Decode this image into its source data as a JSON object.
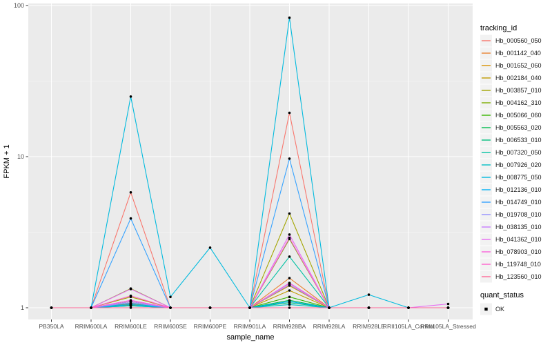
{
  "figure": {
    "background": "#FFFFFF",
    "panel_background": "#EBEBEB",
    "grid_major_color": "#FFFFFF",
    "grid_minor_color": "#FFFFFF",
    "axis_text_color": "#4D4D4D",
    "axis_title_color": "#000000",
    "tick_color": "#333333",
    "point_color": "#000000",
    "legend_key_background": "#F2F2F2"
  },
  "chart_data": {
    "type": "line",
    "title": "",
    "xlabel": "sample_name",
    "ylabel": "FPKM + 1",
    "y_scale": "log10",
    "ylim": [
      0.83,
      101
    ],
    "y_ticks": [
      1,
      10,
      100
    ],
    "y_tick_labels": [
      "1",
      "10",
      "100"
    ],
    "y_minor_ticks": [
      3.162,
      31.62
    ],
    "grid": true,
    "legend_position": "right",
    "categories": [
      "PB350LA",
      "RRIM600LA",
      "RRIM600LE",
      "RRIM600SE",
      "RRIM600PE",
      "RRIM901LA",
      "RRIM928BA",
      "RRIM928LA",
      "RRIM928LE",
      "RRII105LA_Control",
      "RRII105LA_Stressed"
    ],
    "legend_title": "tracking_id",
    "series": [
      {
        "name": "Hb_000560_050",
        "color": "#F8766D",
        "values": [
          1,
          1,
          5.8,
          1,
          1,
          1,
          19.5,
          1,
          1,
          1,
          1
        ]
      },
      {
        "name": "Hb_001142_040",
        "color": "#EA8331",
        "values": [
          1,
          1,
          1.06,
          1,
          1,
          1,
          1.57,
          1,
          1,
          1,
          1
        ]
      },
      {
        "name": "Hb_001652_060",
        "color": "#D89000",
        "values": [
          1,
          1,
          1.04,
          1,
          1,
          1,
          1.4,
          1,
          1,
          1,
          1
        ]
      },
      {
        "name": "Hb_002184_040",
        "color": "#C09B00",
        "values": [
          1,
          1,
          1.1,
          1,
          1,
          1,
          1.3,
          1,
          1,
          1,
          1
        ]
      },
      {
        "name": "Hb_003857_010",
        "color": "#A3A500",
        "values": [
          1,
          1,
          1.18,
          1,
          1,
          1,
          4.2,
          1,
          1,
          1,
          1
        ]
      },
      {
        "name": "Hb_004162_310",
        "color": "#7CAE00",
        "values": [
          1,
          1,
          1.34,
          1,
          1,
          1,
          2.85,
          1,
          1,
          1,
          1
        ]
      },
      {
        "name": "Hb_005066_060",
        "color": "#39B600",
        "values": [
          1,
          1,
          1.1,
          1,
          1,
          1,
          1.18,
          1,
          1,
          1,
          1
        ]
      },
      {
        "name": "Hb_005563_020",
        "color": "#00BB4E",
        "values": [
          1,
          1,
          1.05,
          1,
          1,
          1,
          1.12,
          1,
          1,
          1,
          1
        ]
      },
      {
        "name": "Hb_006533_010",
        "color": "#00BF7D",
        "values": [
          1,
          1,
          1.03,
          1,
          1,
          1,
          1.08,
          1,
          1,
          1,
          1
        ]
      },
      {
        "name": "Hb_007320_050",
        "color": "#00C1A3",
        "values": [
          1,
          1,
          1.07,
          1,
          1,
          1,
          2.18,
          1,
          1,
          1,
          1
        ]
      },
      {
        "name": "Hb_007926_020",
        "color": "#00BFC4",
        "values": [
          1,
          1,
          1.03,
          1,
          1,
          1,
          1.05,
          1,
          1,
          1,
          1
        ]
      },
      {
        "name": "Hb_008775_050",
        "color": "#00BADE",
        "values": [
          1,
          1,
          25,
          1.18,
          2.5,
          1,
          83,
          1,
          1.22,
          1,
          1
        ]
      },
      {
        "name": "Hb_012136_010",
        "color": "#00B0F6",
        "values": [
          1,
          1,
          1.05,
          1,
          1,
          1,
          1.1,
          1,
          1,
          1,
          1
        ]
      },
      {
        "name": "Hb_014749_010",
        "color": "#35A2FF",
        "values": [
          1,
          1,
          3.9,
          1,
          1,
          1,
          9.7,
          1,
          1,
          1,
          1
        ]
      },
      {
        "name": "Hb_019708_010",
        "color": "#9590FF",
        "values": [
          1,
          1,
          1.08,
          1,
          1,
          1,
          1.42,
          1,
          1,
          1,
          1
        ]
      },
      {
        "name": "Hb_038135_010",
        "color": "#C77CFF",
        "values": [
          1,
          1,
          1.1,
          1,
          1,
          1,
          1.46,
          1,
          1,
          1,
          1
        ]
      },
      {
        "name": "Hb_041362_010",
        "color": "#E76BF3",
        "values": [
          1,
          1,
          1.33,
          1,
          1,
          1,
          3.05,
          1,
          1,
          1,
          1.06
        ]
      },
      {
        "name": "Hb_078903_010",
        "color": "#FA62DB",
        "values": [
          1,
          1,
          1.12,
          1,
          1,
          1,
          2.9,
          1,
          1,
          1,
          1
        ]
      },
      {
        "name": "Hb_119748_010",
        "color": "#FF61CC",
        "values": [
          1,
          1,
          1.2,
          1,
          1,
          1,
          1.45,
          1,
          1,
          1,
          1
        ]
      },
      {
        "name": "Hb_123560_010",
        "color": "#FF6A98",
        "values": [
          1,
          1,
          1,
          1,
          1,
          1,
          1,
          1,
          1,
          1,
          1
        ]
      }
    ],
    "legend2": {
      "title": "quant_status",
      "items": [
        {
          "label": "OK",
          "marker": "black-square-point"
        }
      ]
    }
  }
}
